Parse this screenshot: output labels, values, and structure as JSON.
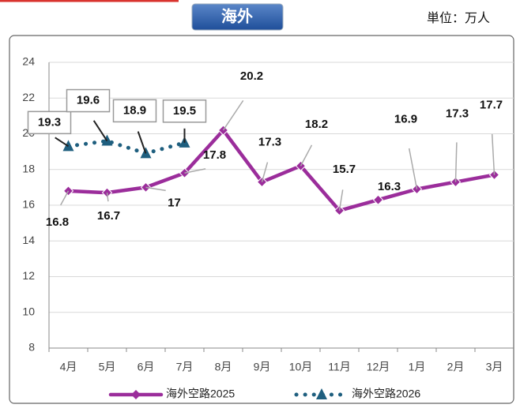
{
  "chart_data": {
    "type": "line",
    "title": "海外",
    "unit_label": "単位：万人",
    "categories": [
      "4月",
      "5月",
      "6月",
      "7月",
      "8月",
      "9月",
      "10月",
      "11月",
      "12月",
      "1月",
      "2月",
      "3月"
    ],
    "series": [
      {
        "name": "海外空路2025",
        "color": "#9b2d9b",
        "values": [
          16.8,
          16.7,
          17.0,
          17.8,
          20.2,
          17.3,
          18.2,
          15.7,
          16.3,
          16.9,
          17.3,
          17.7
        ]
      },
      {
        "name": "海外空路2026",
        "color": "#1f5f7f",
        "values": [
          19.3,
          19.6,
          18.9,
          19.5,
          null,
          null,
          null,
          null,
          null,
          null,
          null,
          null
        ]
      }
    ],
    "ylim": [
      8,
      24
    ],
    "yticks": [
      8,
      10,
      12,
      14,
      16,
      18,
      20,
      22,
      24
    ],
    "grid": true
  }
}
